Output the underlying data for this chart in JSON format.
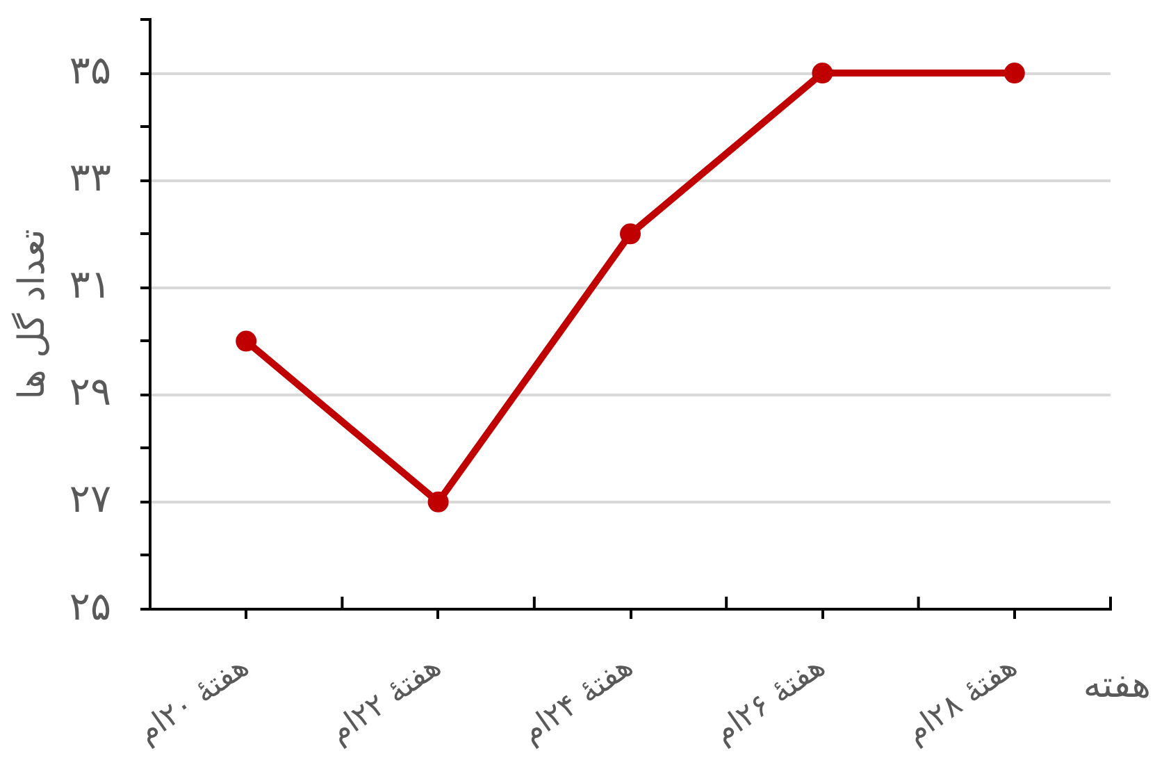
{
  "chart_data": {
    "type": "line",
    "categories": [
      "هفتهٔ ۲۰ام",
      "هفتهٔ ۲۲ام",
      "هفتهٔ ۲۴ام",
      "هفتهٔ ۲۶ام",
      "هفتهٔ ۲۸ام"
    ],
    "series": [
      {
        "color": "#c00000",
        "values": [
          30,
          27,
          32,
          35,
          35
        ]
      }
    ],
    "xlabel": "هفته",
    "ylabel": "تعداد گل ها",
    "ylim": [
      25,
      36
    ],
    "yticks": [
      {
        "value": 25,
        "label": "۲۵"
      },
      {
        "value": 26,
        "label": null
      },
      {
        "value": 27,
        "label": "۲۷"
      },
      {
        "value": 28,
        "label": null
      },
      {
        "value": 29,
        "label": "۲۹"
      },
      {
        "value": 30,
        "label": null
      },
      {
        "value": 31,
        "label": "۳۱"
      },
      {
        "value": 32,
        "label": null
      },
      {
        "value": 33,
        "label": "۳۳"
      },
      {
        "value": 34,
        "label": null
      },
      {
        "value": 35,
        "label": "۳۵"
      },
      {
        "value": 36,
        "label": null
      }
    ],
    "grid": "y",
    "marker": "circle",
    "line_style": "solid",
    "legend": false
  }
}
